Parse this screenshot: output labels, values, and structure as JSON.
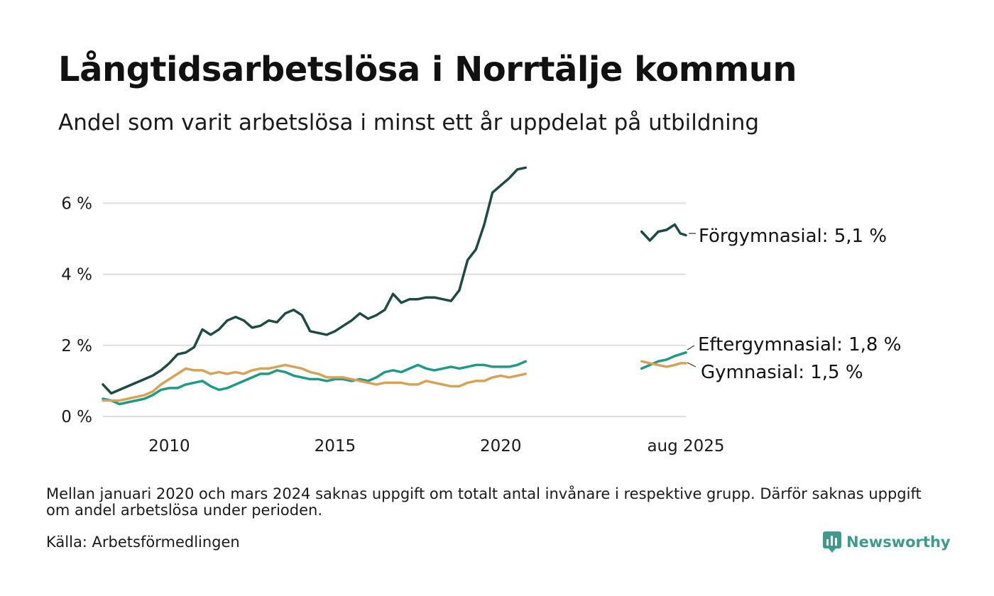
{
  "title": "Långtidsarbetslösa i Norrtälje kommun",
  "subtitle": "Andel som varit arbetslösa i minst ett år uppdelat på utbildning",
  "note": "Mellan januari 2020 och mars 2024 saknas uppgift om totalt antal invånare i respektive grupp. Därför saknas uppgift om andel arbetslösa under perioden.",
  "source": "Källa: Arbetsförmedlingen",
  "brand": "Newsworthy",
  "colors": {
    "forgymnasial": "#1f4a44",
    "eftergymnasial": "#1e9a86",
    "gymnasial": "#d6a257",
    "grid": "#dedede",
    "brand": "#3e9a8a"
  },
  "chart_data": {
    "type": "line",
    "title": "Långtidsarbetslösa i Norrtälje kommun",
    "subtitle": "Andel som varit arbetslösa i minst ett år uppdelat på utbildning",
    "ylim": [
      0,
      7.2
    ],
    "y_ticks": [
      0,
      2,
      4,
      6
    ],
    "y_tick_labels": [
      "0 %",
      "2 %",
      "4 %",
      "6 %"
    ],
    "x_ticks": [
      "2010-01",
      "2015-01",
      "2020-01",
      "2025-08"
    ],
    "x_tick_labels": [
      "2010",
      "2015",
      "2020",
      "aug 2025"
    ],
    "x_range": [
      "2008-01",
      "2025-08"
    ],
    "grid": "horizontal",
    "gap": "Mellan januari 2020 och mars 2024 saknas uppgift",
    "series": [
      {
        "name": "Förgymnasial",
        "end_label": "Förgymnasial: 5,1 %",
        "color_key": "forgymnasial",
        "points": [
          [
            "2008-01",
            0.9
          ],
          [
            "2008-04",
            0.65
          ],
          [
            "2008-07",
            0.75
          ],
          [
            "2008-10",
            0.85
          ],
          [
            "2009-01",
            0.95
          ],
          [
            "2009-04",
            1.05
          ],
          [
            "2009-07",
            1.15
          ],
          [
            "2009-10",
            1.3
          ],
          [
            "2010-01",
            1.5
          ],
          [
            "2010-04",
            1.75
          ],
          [
            "2010-07",
            1.8
          ],
          [
            "2010-10",
            1.95
          ],
          [
            "2011-01",
            2.45
          ],
          [
            "2011-04",
            2.3
          ],
          [
            "2011-07",
            2.45
          ],
          [
            "2011-10",
            2.7
          ],
          [
            "2012-01",
            2.8
          ],
          [
            "2012-04",
            2.7
          ],
          [
            "2012-07",
            2.5
          ],
          [
            "2012-10",
            2.55
          ],
          [
            "2013-01",
            2.7
          ],
          [
            "2013-04",
            2.65
          ],
          [
            "2013-07",
            2.9
          ],
          [
            "2013-10",
            3.0
          ],
          [
            "2014-01",
            2.85
          ],
          [
            "2014-04",
            2.4
          ],
          [
            "2014-07",
            2.35
          ],
          [
            "2014-10",
            2.3
          ],
          [
            "2015-01",
            2.4
          ],
          [
            "2015-04",
            2.55
          ],
          [
            "2015-07",
            2.7
          ],
          [
            "2015-10",
            2.9
          ],
          [
            "2016-01",
            2.75
          ],
          [
            "2016-04",
            2.85
          ],
          [
            "2016-07",
            3.0
          ],
          [
            "2016-10",
            3.45
          ],
          [
            "2017-01",
            3.2
          ],
          [
            "2017-04",
            3.3
          ],
          [
            "2017-07",
            3.3
          ],
          [
            "2017-10",
            3.35
          ],
          [
            "2018-01",
            3.35
          ],
          [
            "2018-04",
            3.3
          ],
          [
            "2018-07",
            3.25
          ],
          [
            "2018-10",
            3.55
          ],
          [
            "2019-01",
            4.4
          ],
          [
            "2019-04",
            4.7
          ],
          [
            "2019-07",
            5.4
          ],
          [
            "2019-10",
            6.3
          ],
          [
            "2020-01",
            6.5
          ],
          [
            "2020-04",
            6.7
          ],
          [
            "2020-07",
            6.95
          ],
          [
            "2020-10",
            7.0
          ]
        ],
        "points_after_gap": [
          [
            "2024-04",
            5.2
          ],
          [
            "2024-07",
            4.95
          ],
          [
            "2024-10",
            5.2
          ],
          [
            "2025-01",
            5.25
          ],
          [
            "2025-04",
            5.4
          ],
          [
            "2025-06",
            5.15
          ],
          [
            "2025-08",
            5.1
          ]
        ]
      },
      {
        "name": "Eftergymnasial",
        "end_label": "Eftergymnasial: 1,8 %",
        "color_key": "eftergymnasial",
        "points": [
          [
            "2008-01",
            0.5
          ],
          [
            "2008-04",
            0.45
          ],
          [
            "2008-07",
            0.35
          ],
          [
            "2008-10",
            0.4
          ],
          [
            "2009-01",
            0.45
          ],
          [
            "2009-04",
            0.5
          ],
          [
            "2009-07",
            0.6
          ],
          [
            "2009-10",
            0.75
          ],
          [
            "2010-01",
            0.8
          ],
          [
            "2010-04",
            0.8
          ],
          [
            "2010-07",
            0.9
          ],
          [
            "2010-10",
            0.95
          ],
          [
            "2011-01",
            1.0
          ],
          [
            "2011-04",
            0.85
          ],
          [
            "2011-07",
            0.75
          ],
          [
            "2011-10",
            0.8
          ],
          [
            "2012-01",
            0.9
          ],
          [
            "2012-04",
            1.0
          ],
          [
            "2012-07",
            1.1
          ],
          [
            "2012-10",
            1.2
          ],
          [
            "2013-01",
            1.2
          ],
          [
            "2013-04",
            1.3
          ],
          [
            "2013-07",
            1.25
          ],
          [
            "2013-10",
            1.15
          ],
          [
            "2014-01",
            1.1
          ],
          [
            "2014-04",
            1.05
          ],
          [
            "2014-07",
            1.05
          ],
          [
            "2014-10",
            1.0
          ],
          [
            "2015-01",
            1.05
          ],
          [
            "2015-04",
            1.05
          ],
          [
            "2015-07",
            1.0
          ],
          [
            "2015-10",
            1.05
          ],
          [
            "2016-01",
            1.0
          ],
          [
            "2016-04",
            1.1
          ],
          [
            "2016-07",
            1.25
          ],
          [
            "2016-10",
            1.3
          ],
          [
            "2017-01",
            1.25
          ],
          [
            "2017-04",
            1.35
          ],
          [
            "2017-07",
            1.45
          ],
          [
            "2017-10",
            1.35
          ],
          [
            "2018-01",
            1.3
          ],
          [
            "2018-04",
            1.35
          ],
          [
            "2018-07",
            1.4
          ],
          [
            "2018-10",
            1.35
          ],
          [
            "2019-01",
            1.4
          ],
          [
            "2019-04",
            1.45
          ],
          [
            "2019-07",
            1.45
          ],
          [
            "2019-10",
            1.4
          ],
          [
            "2020-01",
            1.4
          ],
          [
            "2020-04",
            1.4
          ],
          [
            "2020-07",
            1.45
          ],
          [
            "2020-10",
            1.55
          ]
        ],
        "points_after_gap": [
          [
            "2024-04",
            1.35
          ],
          [
            "2024-07",
            1.45
          ],
          [
            "2024-10",
            1.55
          ],
          [
            "2025-01",
            1.6
          ],
          [
            "2025-04",
            1.7
          ],
          [
            "2025-06",
            1.75
          ],
          [
            "2025-08",
            1.8
          ]
        ]
      },
      {
        "name": "Gymnasial",
        "end_label": "Gymnasial: 1,5 %",
        "color_key": "gymnasial",
        "points": [
          [
            "2008-01",
            0.45
          ],
          [
            "2008-04",
            0.45
          ],
          [
            "2008-07",
            0.45
          ],
          [
            "2008-10",
            0.5
          ],
          [
            "2009-01",
            0.55
          ],
          [
            "2009-04",
            0.6
          ],
          [
            "2009-07",
            0.7
          ],
          [
            "2009-10",
            0.9
          ],
          [
            "2010-01",
            1.05
          ],
          [
            "2010-04",
            1.2
          ],
          [
            "2010-07",
            1.35
          ],
          [
            "2010-10",
            1.3
          ],
          [
            "2011-01",
            1.3
          ],
          [
            "2011-04",
            1.2
          ],
          [
            "2011-07",
            1.25
          ],
          [
            "2011-10",
            1.2
          ],
          [
            "2012-01",
            1.25
          ],
          [
            "2012-04",
            1.2
          ],
          [
            "2012-07",
            1.3
          ],
          [
            "2012-10",
            1.35
          ],
          [
            "2013-01",
            1.35
          ],
          [
            "2013-04",
            1.4
          ],
          [
            "2013-07",
            1.45
          ],
          [
            "2013-10",
            1.4
          ],
          [
            "2014-01",
            1.35
          ],
          [
            "2014-04",
            1.25
          ],
          [
            "2014-07",
            1.2
          ],
          [
            "2014-10",
            1.1
          ],
          [
            "2015-01",
            1.1
          ],
          [
            "2015-04",
            1.1
          ],
          [
            "2015-07",
            1.05
          ],
          [
            "2015-10",
            1.0
          ],
          [
            "2016-01",
            0.95
          ],
          [
            "2016-04",
            0.9
          ],
          [
            "2016-07",
            0.95
          ],
          [
            "2016-10",
            0.95
          ],
          [
            "2017-01",
            0.95
          ],
          [
            "2017-04",
            0.9
          ],
          [
            "2017-07",
            0.9
          ],
          [
            "2017-10",
            1.0
          ],
          [
            "2018-01",
            0.95
          ],
          [
            "2018-04",
            0.9
          ],
          [
            "2018-07",
            0.85
          ],
          [
            "2018-10",
            0.85
          ],
          [
            "2019-01",
            0.95
          ],
          [
            "2019-04",
            1.0
          ],
          [
            "2019-07",
            1.0
          ],
          [
            "2019-10",
            1.1
          ],
          [
            "2020-01",
            1.15
          ],
          [
            "2020-04",
            1.1
          ],
          [
            "2020-07",
            1.15
          ],
          [
            "2020-10",
            1.2
          ]
        ],
        "points_after_gap": [
          [
            "2024-04",
            1.55
          ],
          [
            "2024-07",
            1.5
          ],
          [
            "2024-10",
            1.45
          ],
          [
            "2025-01",
            1.4
          ],
          [
            "2025-04",
            1.45
          ],
          [
            "2025-06",
            1.5
          ],
          [
            "2025-08",
            1.5
          ]
        ]
      }
    ]
  }
}
